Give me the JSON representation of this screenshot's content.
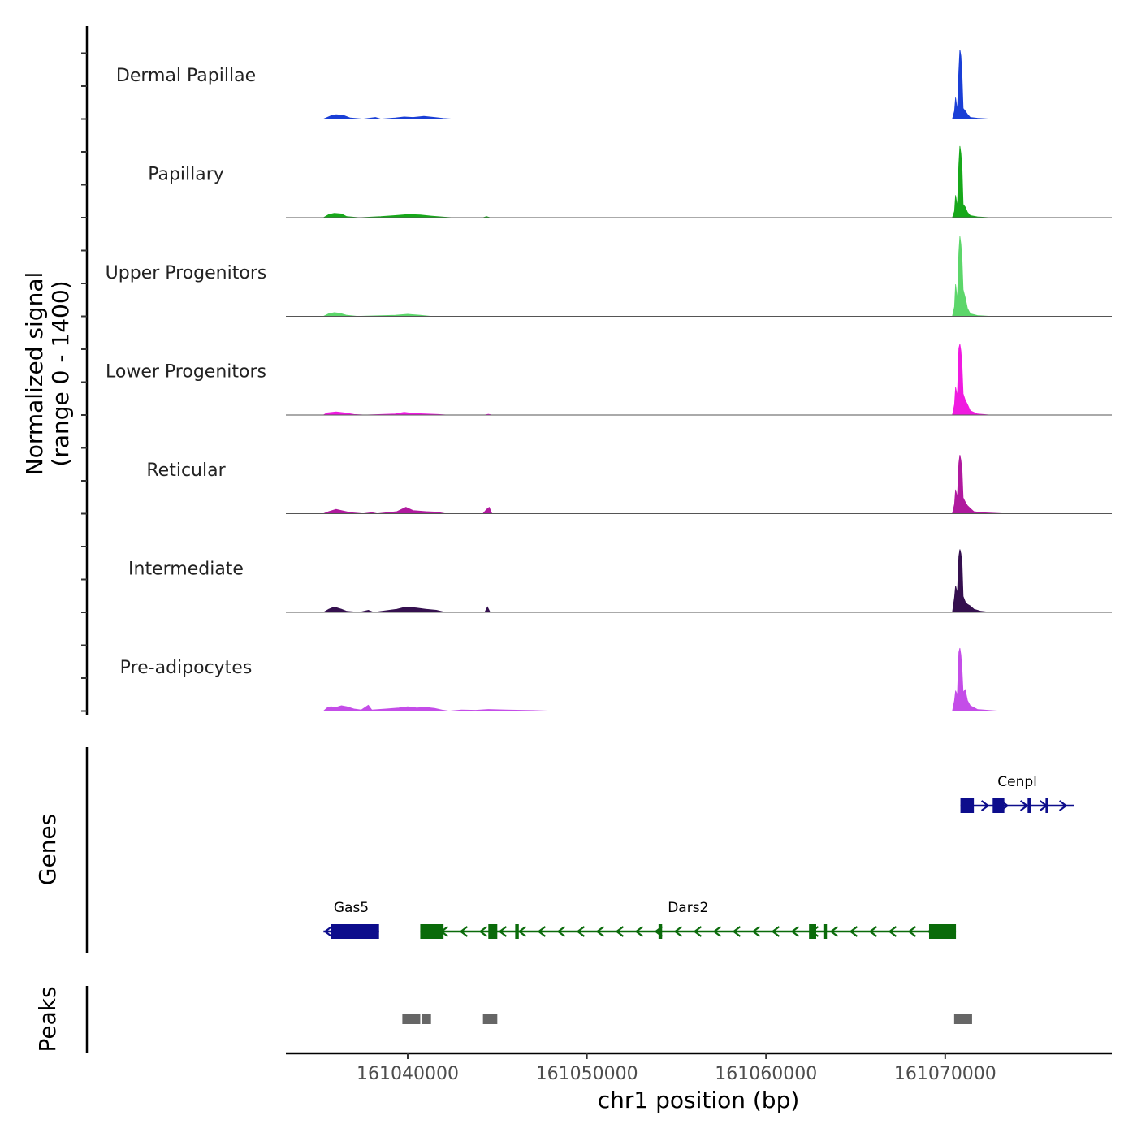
{
  "chart_data": {
    "type": "area",
    "title": "",
    "xlabel": "chr1 position (bp)",
    "ylabel_lines": [
      "Normalized signal",
      "(range 0 - 1400)"
    ],
    "ylim": [
      0,
      1400
    ],
    "xlim": [
      161033200,
      161079300
    ],
    "x_ticks": [
      161040000,
      161050000,
      161060000,
      161070000
    ],
    "x_tick_labels": [
      "161040000",
      "161050000",
      "161060000",
      "161070000"
    ],
    "tracks": [
      {
        "name": "Dermal Papillae",
        "color": "#1a3fd6",
        "points": [
          [
            161033200,
            0
          ],
          [
            161035300,
            0
          ],
          [
            161035700,
            60
          ],
          [
            161036000,
            80
          ],
          [
            161036400,
            70
          ],
          [
            161036800,
            20
          ],
          [
            161037500,
            0
          ],
          [
            161038200,
            30
          ],
          [
            161038500,
            0
          ],
          [
            161039300,
            20
          ],
          [
            161039800,
            40
          ],
          [
            161040300,
            30
          ],
          [
            161040900,
            50
          ],
          [
            161041500,
            30
          ],
          [
            161042000,
            10
          ],
          [
            161042500,
            0
          ],
          [
            161070400,
            0
          ],
          [
            161070520,
            150
          ],
          [
            161070580,
            400
          ],
          [
            161070680,
            150
          ],
          [
            161070760,
            900
          ],
          [
            161070820,
            1300
          ],
          [
            161070880,
            1180
          ],
          [
            161070940,
            780
          ],
          [
            161071000,
            200
          ],
          [
            161071120,
            150
          ],
          [
            161071240,
            90
          ],
          [
            161071400,
            30
          ],
          [
            161071800,
            15
          ],
          [
            161072500,
            0
          ],
          [
            161079300,
            0
          ]
        ]
      },
      {
        "name": "Papillary",
        "color": "#17a81a",
        "points": [
          [
            161033200,
            0
          ],
          [
            161035300,
            0
          ],
          [
            161035600,
            60
          ],
          [
            161035900,
            80
          ],
          [
            161036300,
            70
          ],
          [
            161036600,
            20
          ],
          [
            161037300,
            0
          ],
          [
            161038500,
            20
          ],
          [
            161039300,
            40
          ],
          [
            161040000,
            60
          ],
          [
            161040700,
            50
          ],
          [
            161041300,
            30
          ],
          [
            161042000,
            10
          ],
          [
            161042500,
            0
          ],
          [
            161044200,
            0
          ],
          [
            161044400,
            20
          ],
          [
            161044600,
            0
          ],
          [
            161070400,
            0
          ],
          [
            161070520,
            120
          ],
          [
            161070580,
            420
          ],
          [
            161070680,
            200
          ],
          [
            161070760,
            1000
          ],
          [
            161070820,
            1340
          ],
          [
            161070880,
            1200
          ],
          [
            161070940,
            900
          ],
          [
            161071000,
            250
          ],
          [
            161071120,
            200
          ],
          [
            161071240,
            100
          ],
          [
            161071400,
            40
          ],
          [
            161071800,
            15
          ],
          [
            161072500,
            0
          ],
          [
            161079300,
            0
          ]
        ]
      },
      {
        "name": "Upper Progenitors",
        "color": "#5cd66a",
        "points": [
          [
            161033200,
            0
          ],
          [
            161035300,
            0
          ],
          [
            161035600,
            50
          ],
          [
            161035900,
            70
          ],
          [
            161036200,
            60
          ],
          [
            161036600,
            20
          ],
          [
            161037200,
            0
          ],
          [
            161039300,
            20
          ],
          [
            161040000,
            40
          ],
          [
            161040700,
            20
          ],
          [
            161041300,
            0
          ],
          [
            161070400,
            0
          ],
          [
            161070520,
            180
          ],
          [
            161070580,
            600
          ],
          [
            161070680,
            300
          ],
          [
            161070760,
            1200
          ],
          [
            161070820,
            1500
          ],
          [
            161070880,
            1350
          ],
          [
            161070940,
            1050
          ],
          [
            161071000,
            500
          ],
          [
            161071120,
            350
          ],
          [
            161071240,
            150
          ],
          [
            161071400,
            50
          ],
          [
            161071800,
            15
          ],
          [
            161072500,
            0
          ],
          [
            161079300,
            0
          ]
        ]
      },
      {
        "name": "Lower Progenitors",
        "color": "#f01ae0",
        "points": [
          [
            161033200,
            0
          ],
          [
            161035300,
            0
          ],
          [
            161035500,
            40
          ],
          [
            161036000,
            60
          ],
          [
            161036500,
            40
          ],
          [
            161037000,
            10
          ],
          [
            161037600,
            0
          ],
          [
            161039300,
            20
          ],
          [
            161039800,
            50
          ],
          [
            161040300,
            30
          ],
          [
            161041000,
            20
          ],
          [
            161041700,
            10
          ],
          [
            161042200,
            0
          ],
          [
            161044300,
            0
          ],
          [
            161044500,
            15
          ],
          [
            161044700,
            0
          ],
          [
            161070400,
            0
          ],
          [
            161070520,
            200
          ],
          [
            161070580,
            520
          ],
          [
            161070680,
            350
          ],
          [
            161070760,
            1250
          ],
          [
            161070820,
            1330
          ],
          [
            161070880,
            1200
          ],
          [
            161070940,
            900
          ],
          [
            161071000,
            400
          ],
          [
            161071120,
            280
          ],
          [
            161071240,
            200
          ],
          [
            161071400,
            80
          ],
          [
            161071800,
            20
          ],
          [
            161072500,
            0
          ],
          [
            161079300,
            0
          ]
        ]
      },
      {
        "name": "Reticular",
        "color": "#b0199e",
        "points": [
          [
            161033200,
            0
          ],
          [
            161035300,
            0
          ],
          [
            161035600,
            40
          ],
          [
            161036000,
            80
          ],
          [
            161036400,
            50
          ],
          [
            161036800,
            20
          ],
          [
            161037500,
            0
          ],
          [
            161038000,
            20
          ],
          [
            161038300,
            0
          ],
          [
            161039400,
            40
          ],
          [
            161039900,
            120
          ],
          [
            161040300,
            60
          ],
          [
            161041000,
            40
          ],
          [
            161041600,
            30
          ],
          [
            161042100,
            0
          ],
          [
            161044200,
            0
          ],
          [
            161044400,
            80
          ],
          [
            161044550,
            120
          ],
          [
            161044700,
            0
          ],
          [
            161070400,
            0
          ],
          [
            161070520,
            180
          ],
          [
            161070580,
            450
          ],
          [
            161070680,
            300
          ],
          [
            161070760,
            950
          ],
          [
            161070820,
            1100
          ],
          [
            161070880,
            1000
          ],
          [
            161070940,
            800
          ],
          [
            161071000,
            300
          ],
          [
            161071120,
            220
          ],
          [
            161071240,
            150
          ],
          [
            161071400,
            100
          ],
          [
            161071600,
            40
          ],
          [
            161072000,
            20
          ],
          [
            161073300,
            0
          ],
          [
            161079300,
            0
          ]
        ]
      },
      {
        "name": "Intermediate",
        "color": "#35104f",
        "points": [
          [
            161033200,
            0
          ],
          [
            161035300,
            0
          ],
          [
            161035600,
            60
          ],
          [
            161035900,
            100
          ],
          [
            161036300,
            60
          ],
          [
            161036600,
            20
          ],
          [
            161037300,
            0
          ],
          [
            161037800,
            40
          ],
          [
            161038100,
            0
          ],
          [
            161039400,
            60
          ],
          [
            161039900,
            100
          ],
          [
            161040500,
            80
          ],
          [
            161041000,
            60
          ],
          [
            161041600,
            40
          ],
          [
            161042100,
            0
          ],
          [
            161044300,
            0
          ],
          [
            161044450,
            100
          ],
          [
            161044600,
            0
          ],
          [
            161070400,
            0
          ],
          [
            161070520,
            280
          ],
          [
            161070580,
            500
          ],
          [
            161070680,
            350
          ],
          [
            161070760,
            1050
          ],
          [
            161070820,
            1180
          ],
          [
            161070880,
            1100
          ],
          [
            161070940,
            900
          ],
          [
            161071000,
            300
          ],
          [
            161071120,
            200
          ],
          [
            161071240,
            150
          ],
          [
            161071400,
            120
          ],
          [
            161071600,
            60
          ],
          [
            161072000,
            20
          ],
          [
            161072500,
            0
          ],
          [
            161079300,
            0
          ]
        ]
      },
      {
        "name": "Pre-adipocytes",
        "color": "#c44de8",
        "points": [
          [
            161033200,
            0
          ],
          [
            161035300,
            0
          ],
          [
            161035500,
            60
          ],
          [
            161035700,
            80
          ],
          [
            161036000,
            70
          ],
          [
            161036300,
            100
          ],
          [
            161036600,
            80
          ],
          [
            161037000,
            40
          ],
          [
            161037400,
            20
          ],
          [
            161037800,
            110
          ],
          [
            161038000,
            20
          ],
          [
            161038800,
            40
          ],
          [
            161039500,
            60
          ],
          [
            161040000,
            80
          ],
          [
            161040500,
            60
          ],
          [
            161041000,
            70
          ],
          [
            161041500,
            50
          ],
          [
            161041900,
            20
          ],
          [
            161042300,
            0
          ],
          [
            161043000,
            20
          ],
          [
            161043800,
            15
          ],
          [
            161044500,
            30
          ],
          [
            161045500,
            20
          ],
          [
            161047000,
            10
          ],
          [
            161048000,
            0
          ],
          [
            161070400,
            0
          ],
          [
            161070520,
            200
          ],
          [
            161070580,
            380
          ],
          [
            161070680,
            300
          ],
          [
            161070760,
            1100
          ],
          [
            161070820,
            1180
          ],
          [
            161070880,
            1050
          ],
          [
            161070940,
            750
          ],
          [
            161071000,
            350
          ],
          [
            161071120,
            400
          ],
          [
            161071240,
            200
          ],
          [
            161071400,
            100
          ],
          [
            161071800,
            30
          ],
          [
            161072500,
            10
          ],
          [
            161073000,
            0
          ],
          [
            161079300,
            0
          ]
        ]
      }
    ],
    "genes_label": "Genes",
    "genes": [
      {
        "name": "Cenpl",
        "color": "#0d0d8c",
        "strand": "+",
        "row": 0,
        "start": 161070850,
        "end": 161077200,
        "exons": [
          [
            161070850,
            161071600
          ],
          [
            161072650,
            161073300
          ],
          [
            161074600,
            161074800
          ],
          [
            161075600,
            161075700
          ]
        ]
      },
      {
        "name": "Gas5",
        "color": "#0d0d8c",
        "strand": "-",
        "row": 1,
        "start": 161035300,
        "end": 161038400,
        "exons": [
          [
            161035700,
            161038400
          ]
        ]
      },
      {
        "name": "Dars2",
        "color": "#0a6b0a",
        "strand": "-",
        "row": 1,
        "start": 161040700,
        "end": 161070600,
        "exons": [
          [
            161040700,
            161042000
          ],
          [
            161044500,
            161045000
          ],
          [
            161046000,
            161046200
          ],
          [
            161054000,
            161054200
          ],
          [
            161062400,
            161062800
          ],
          [
            161063200,
            161063400
          ],
          [
            161069100,
            161070600
          ]
        ]
      }
    ],
    "peaks_label": "Peaks",
    "peaks_color": "#666666",
    "peaks": [
      [
        161039700,
        161040700
      ],
      [
        161040800,
        161041300
      ],
      [
        161044200,
        161045000
      ],
      [
        161070500,
        161071500
      ]
    ]
  }
}
